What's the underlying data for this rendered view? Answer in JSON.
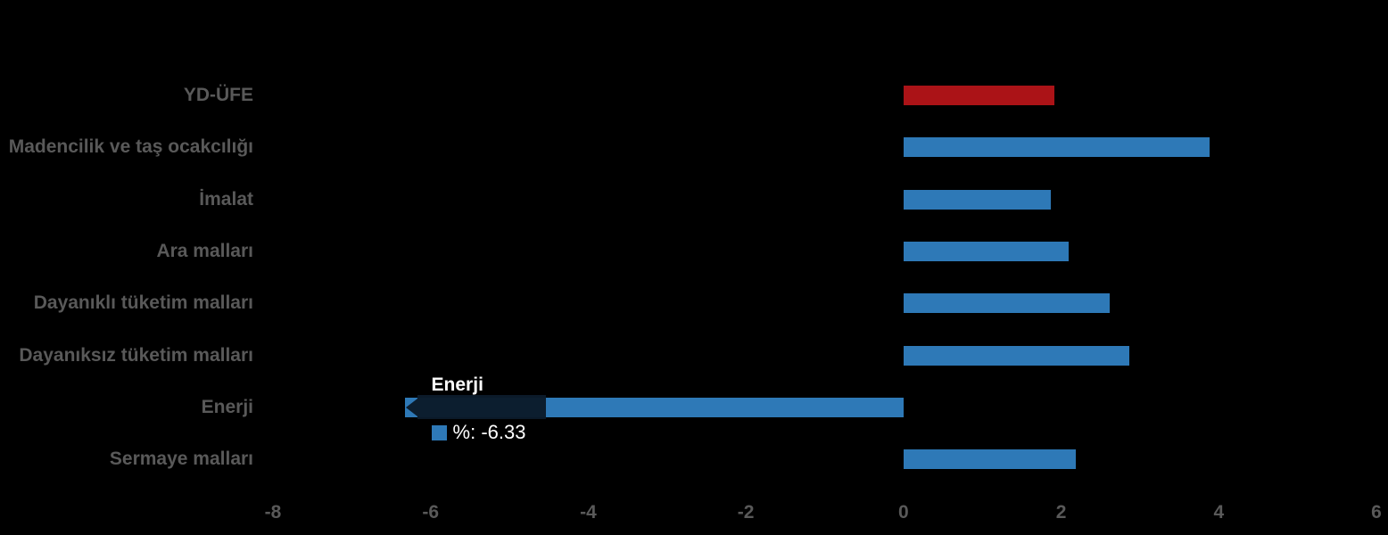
{
  "colors": {
    "background": "#000000",
    "label_gray": "#595959",
    "bar_blue": "#2e79b7",
    "bar_red": "#ab1317",
    "tooltip_bg": "#0b1b2a",
    "tooltip_text": "#ffffff"
  },
  "chart_data": {
    "type": "bar",
    "orientation": "horizontal",
    "title": "",
    "xlabel": "",
    "ylabel": "",
    "categories": [
      "YD-ÜFE",
      "Madencilik ve taş ocakcılığı",
      "İmalat",
      "Ara malları",
      "Dayanıklı tüketim malları",
      "Dayanıksız tüketim malları",
      "Enerji",
      "Sermaye malları"
    ],
    "values": [
      1.91,
      3.88,
      1.87,
      2.1,
      2.62,
      2.87,
      -6.33,
      2.19
    ],
    "bar_colors": [
      "#ab1317",
      "#2e79b7",
      "#2e79b7",
      "#2e79b7",
      "#2e79b7",
      "#2e79b7",
      "#2e79b7",
      "#2e79b7"
    ],
    "xlim": [
      -8,
      6
    ],
    "x_ticks": [
      "-8",
      "-6",
      "-4",
      "-2",
      "0",
      "2",
      "4",
      "6"
    ],
    "x_tick_values": [
      -8,
      -6,
      -4,
      -2,
      0,
      2,
      4,
      6
    ],
    "grid": false,
    "legend": false,
    "tooltip": {
      "category": "Enerji",
      "value": -6.33,
      "value_label": "%: -6.33",
      "swatch_color": "#2e79b7"
    }
  }
}
